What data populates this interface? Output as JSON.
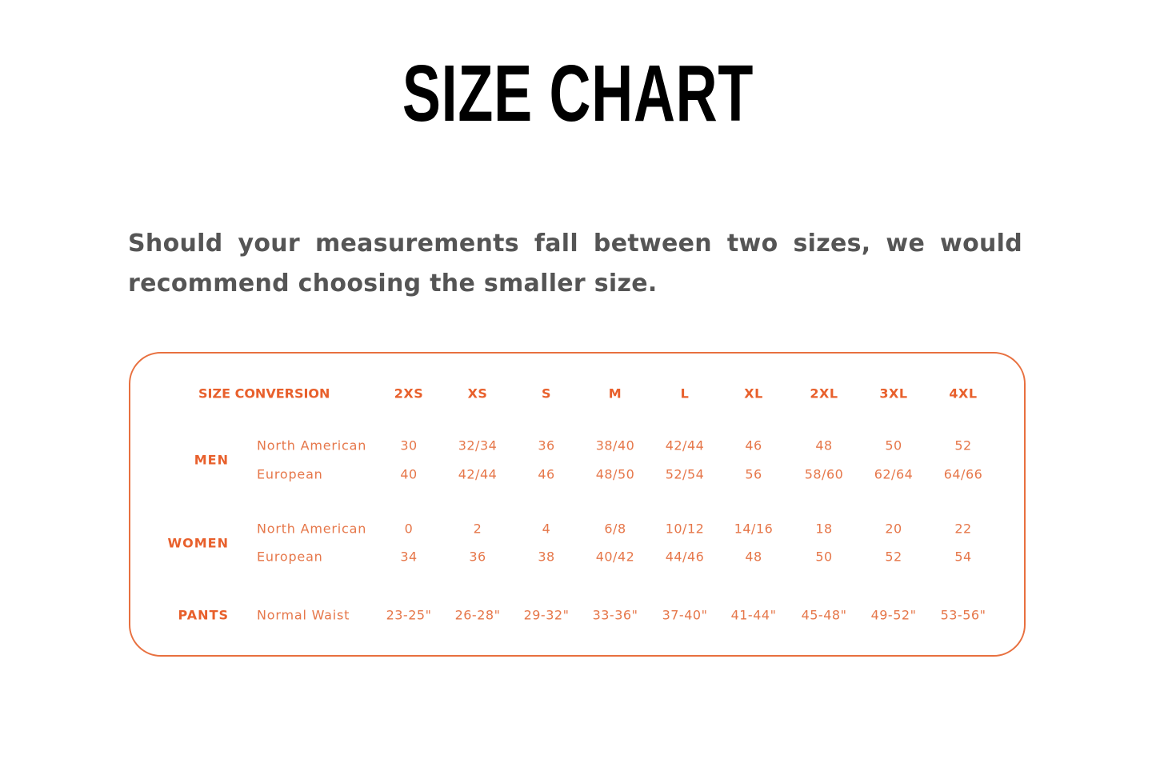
{
  "title": "SIZE CHART",
  "note": "Should your measurements fall between two sizes, we would recommend choosing the smaller size.",
  "accent_color": "#e8703f",
  "table": {
    "header_label": "SIZE CONVERSION",
    "sizes": [
      "2XS",
      "XS",
      "S",
      "M",
      "L",
      "XL",
      "2XL",
      "3XL",
      "4XL"
    ],
    "groups": [
      {
        "label": "MEN",
        "rows": [
          {
            "label": "North American",
            "values": [
              "30",
              "32/34",
              "36",
              "38/40",
              "42/44",
              "46",
              "48",
              "50",
              "52"
            ]
          },
          {
            "label": "European",
            "values": [
              "40",
              "42/44",
              "46",
              "48/50",
              "52/54",
              "56",
              "58/60",
              "62/64",
              "64/66"
            ]
          }
        ]
      },
      {
        "label": "WOMEN",
        "rows": [
          {
            "label": "North American",
            "values": [
              "0",
              "2",
              "4",
              "6/8",
              "10/12",
              "14/16",
              "18",
              "20",
              "22"
            ]
          },
          {
            "label": "European",
            "values": [
              "34",
              "36",
              "38",
              "40/42",
              "44/46",
              "48",
              "50",
              "52",
              "54"
            ]
          }
        ]
      },
      {
        "label": "PANTS",
        "rows": [
          {
            "label": "Normal Waist",
            "values": [
              "23-25\"",
              "26-28\"",
              "29-32\"",
              "33-36\"",
              "37-40\"",
              "41-44\"",
              "45-48\"",
              "49-52\"",
              "53-56\""
            ]
          }
        ]
      }
    ]
  }
}
